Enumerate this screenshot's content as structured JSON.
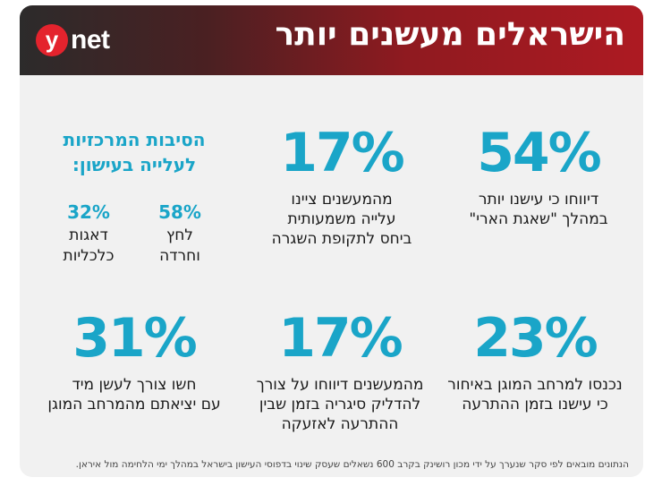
{
  "header": {
    "title": "הישראלים מעשנים יותר",
    "logo_letter": "y",
    "logo_word": "net",
    "logo_color": "#e4232d"
  },
  "accent_color": "#1aa5c8",
  "stats": [
    {
      "value": "54%",
      "desc_lines": [
        "דיווחו כי עישנו יותר",
        "במהלך \"שאגת הארי\""
      ]
    },
    {
      "value": "17%",
      "desc_lines": [
        "מהמעשנים ציינו",
        "עלייה משמעותית",
        "ביחס לתקופת השגרה"
      ]
    },
    {
      "value": "23%",
      "desc_lines": [
        "נכנסו למרחב המוגן באיחור",
        "כי עישנו בזמן ההתרעה"
      ]
    },
    {
      "value": "17%",
      "desc_lines": [
        "מהמעשנים דיווחו על צורך",
        "להדליק סיגריה בזמן שבין",
        "ההתרעה לאזעקה"
      ]
    },
    {
      "value": "31%",
      "desc_lines": [
        "חשו צורך לעשן מיד",
        "עם יציאתם מהמרחב המוגן"
      ]
    }
  ],
  "reasons": {
    "title_lines": [
      "הסיבות המרכזיות",
      "לעלייה בעישון:"
    ],
    "items": [
      {
        "value": "58%",
        "label_lines": [
          "לחץ",
          "וחרדה"
        ]
      },
      {
        "value": "32%",
        "label_lines": [
          "דאגות",
          "כלכליות"
        ]
      }
    ]
  },
  "footnote": "הנתונים מובאים לפי סקר שנערך על ידי מכון רושינק בקרב 600 נשאלים שעסק שינוי בדפוסי העישון בישראל במהלך ימי הלחימה מול איראן."
}
